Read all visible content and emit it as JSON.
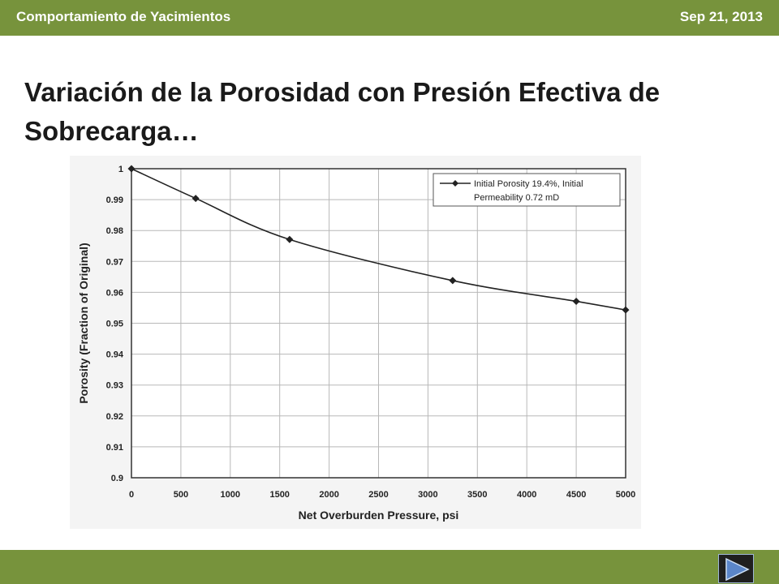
{
  "header": {
    "left_title": "Comportamiento de Yacimientos",
    "date": "Sep 21, 2013"
  },
  "slide": {
    "title": "Variación de la Porosidad con Presión Efectiva de Sobrecarga…"
  },
  "nav": {
    "next_icon": "play-next-icon"
  },
  "colors": {
    "bar": "#77933c",
    "series": "#222222"
  },
  "chart_data": {
    "type": "line",
    "xlabel": "Net Overburden Pressure, psi",
    "ylabel": "Porosity (Fraction of Original)",
    "xlim": [
      0,
      5000
    ],
    "ylim": [
      0.9,
      1.0
    ],
    "xticks": [
      0,
      500,
      1000,
      1500,
      2000,
      2500,
      3000,
      3500,
      4000,
      4500,
      5000
    ],
    "yticks": [
      0.9,
      0.91,
      0.92,
      0.93,
      0.94,
      0.95,
      0.96,
      0.97,
      0.98,
      0.99,
      1
    ],
    "x_tick_labels": [
      "0",
      "500",
      "1000",
      "1500",
      "2000",
      "2500",
      "3000",
      "3500",
      "4000",
      "4500",
      "5000"
    ],
    "y_tick_labels": [
      "0.9",
      "0.91",
      "0.92",
      "0.93",
      "0.94",
      "0.95",
      "0.96",
      "0.97",
      "0.98",
      "0.99",
      "1"
    ],
    "grid": true,
    "legend_position": "top-right",
    "series": [
      {
        "name": "Initial Porosity 19.4%, Initial Permeability 0.72 mD",
        "legend_line1": "Initial Porosity 19.4%, Initial",
        "legend_line2": "Permeability 0.72 mD",
        "x": [
          0,
          650,
          1600,
          3250,
          4500,
          5000
        ],
        "y": [
          1.0,
          0.9904,
          0.9771,
          0.9638,
          0.9571,
          0.9543
        ]
      }
    ]
  }
}
